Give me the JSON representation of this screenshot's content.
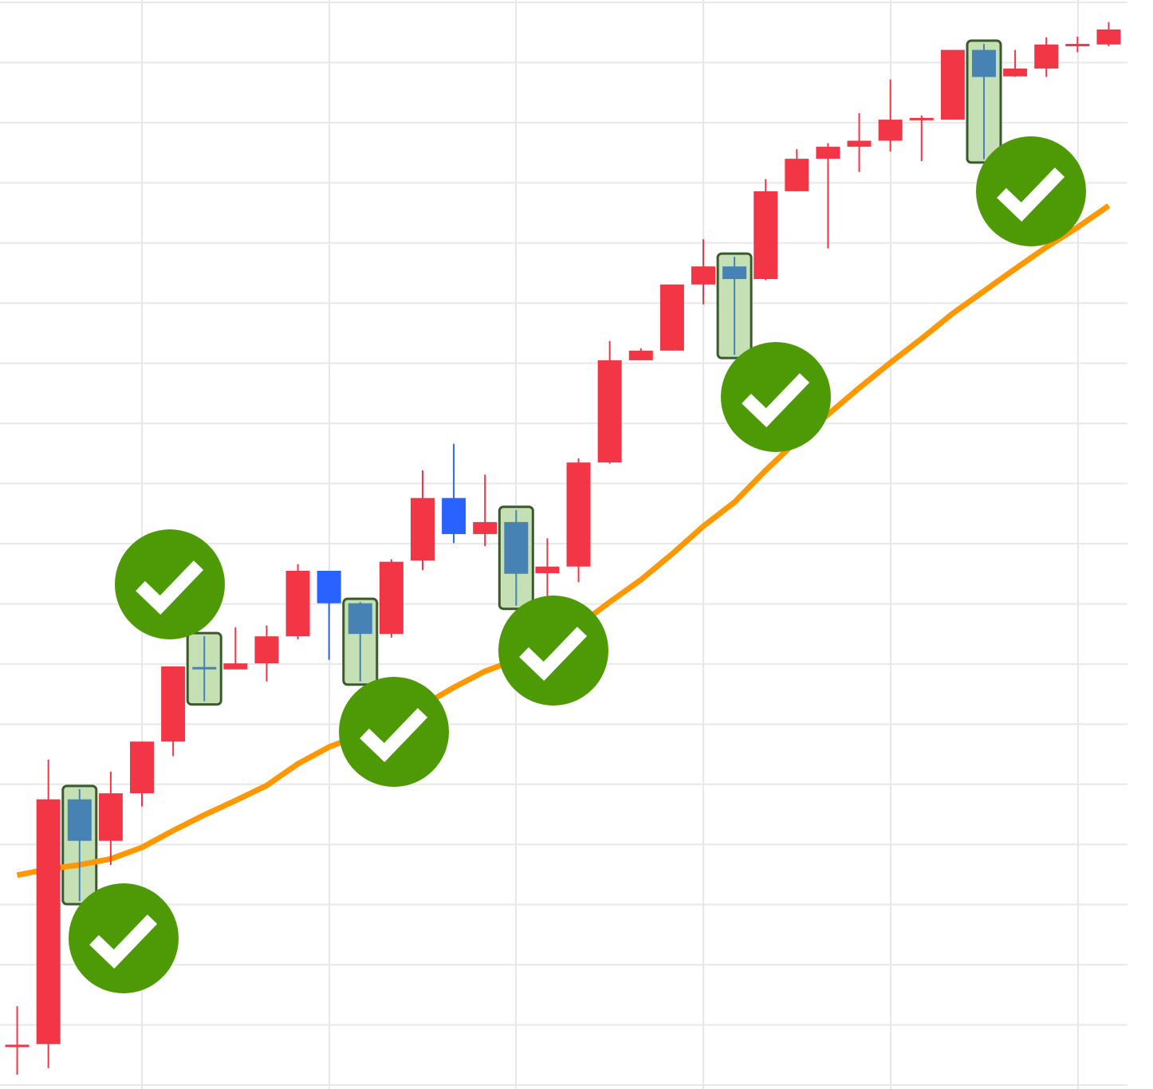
{
  "chart_data": {
    "type": "candlestick",
    "categories": [
      null,
      null,
      null,
      null,
      null,
      null,
      null,
      null,
      null,
      null,
      null,
      null,
      null,
      null,
      null,
      null,
      null,
      null,
      null,
      null,
      null,
      null,
      null,
      null,
      null,
      null,
      null,
      null,
      null,
      null,
      null,
      null,
      null,
      null,
      null,
      null
    ],
    "open": [
      0.65,
      0.68,
      4.75,
      4.06,
      4.85,
      5.71,
      6.93,
      6.91,
      7.01,
      7.46,
      8.55,
      8.01,
      7.5,
      8.72,
      9.76,
      9.16,
      9.36,
      8.51,
      8.62,
      10.35,
      12.05,
      12.21,
      13.31,
      13.61,
      13.4,
      14.86,
      15.4,
      15.6,
      15.7,
      16.04,
      16.05,
      17.21,
      16.77,
      16.9,
      17.27,
      17.3
    ],
    "high": [
      1.31,
      5.41,
      4.92,
      5.21,
      5.71,
      6.96,
      7.46,
      7.61,
      7.64,
      8.66,
      8.55,
      8.03,
      8.74,
      10.22,
      10.66,
      10.15,
      9.56,
      9.09,
      10.42,
      12.37,
      12.25,
      13.31,
      14.06,
      13.77,
      15.06,
      15.56,
      15.66,
      16.16,
      16.72,
      16.12,
      17.21,
      17.31,
      17.21,
      17.42,
      17.43,
      17.67
    ],
    "low": [
      0.17,
      0.28,
      3.06,
      3.66,
      4.63,
      5.47,
      6.38,
      6.91,
      6.71,
      7.41,
      7.07,
      6.71,
      7.44,
      8.56,
      9.01,
      8.96,
      7.97,
      8.13,
      8.36,
      10.33,
      12.05,
      12.21,
      12.98,
      12.14,
      13.38,
      14.86,
      13.91,
      15.18,
      15.52,
      15.36,
      16.05,
      15.39,
      16.76,
      16.76,
      17.17,
      17.27
    ],
    "close": [
      0.65,
      4.75,
      4.06,
      4.85,
      5.71,
      6.96,
      6.93,
      7.01,
      7.46,
      8.55,
      8.01,
      7.5,
      8.7,
      9.76,
      9.16,
      9.36,
      8.5,
      8.62,
      10.35,
      12.05,
      12.21,
      13.31,
      13.61,
      13.4,
      14.86,
      15.4,
      15.6,
      15.7,
      16.05,
      16.08,
      17.21,
      16.76,
      16.9,
      17.3,
      17.31,
      17.55
    ],
    "colors": [
      "#f23645",
      "#f23645",
      "#4682b4",
      "#f23645",
      "#f23645",
      "#f23645",
      "#4682b4",
      "#f23645",
      "#f23645",
      "#f23645",
      "#2962ff",
      "#4682b4",
      "#f23645",
      "#f23645",
      "#2962ff",
      "#f23645",
      "#4682b4",
      "#f23645",
      "#f23645",
      "#f23645",
      "#f23645",
      "#f23645",
      "#f23645",
      "#4682b4",
      "#f23645",
      "#f23645",
      "#f23645",
      "#f23645",
      "#f23645",
      "#f23645",
      "#f23645",
      "#4682b4",
      "#f23645",
      "#f23645",
      "#f23645",
      "#f23645"
    ],
    "highlighted": [
      false,
      false,
      true,
      false,
      false,
      false,
      true,
      false,
      false,
      false,
      false,
      true,
      false,
      false,
      false,
      false,
      true,
      false,
      false,
      false,
      false,
      false,
      false,
      true,
      false,
      false,
      false,
      false,
      false,
      false,
      false,
      true,
      false,
      false,
      false,
      false
    ],
    "highlight_fill": "#c5e0b4",
    "highlight_stroke": "#3a5a2a",
    "moving_average": {
      "color": "#ff9800",
      "values": [
        3.49,
        3.59,
        3.66,
        3.76,
        3.95,
        4.23,
        4.49,
        4.73,
        4.98,
        5.34,
        5.62,
        5.82,
        6.0,
        6.31,
        6.61,
        6.88,
        7.07,
        7.3,
        7.64,
        8.03,
        8.4,
        8.83,
        9.29,
        9.69,
        10.22,
        10.71,
        11.15,
        11.59,
        12.01,
        12.41,
        12.83,
        13.2,
        13.57,
        13.93,
        14.26,
        14.62
      ]
    },
    "ylim": [
      0,
      18
    ],
    "yticks": [
      0,
      1,
      2,
      3,
      4,
      5,
      6,
      7,
      8,
      9,
      10,
      11,
      12,
      13,
      14,
      15,
      16,
      17,
      18
    ],
    "grid": true
  }
}
